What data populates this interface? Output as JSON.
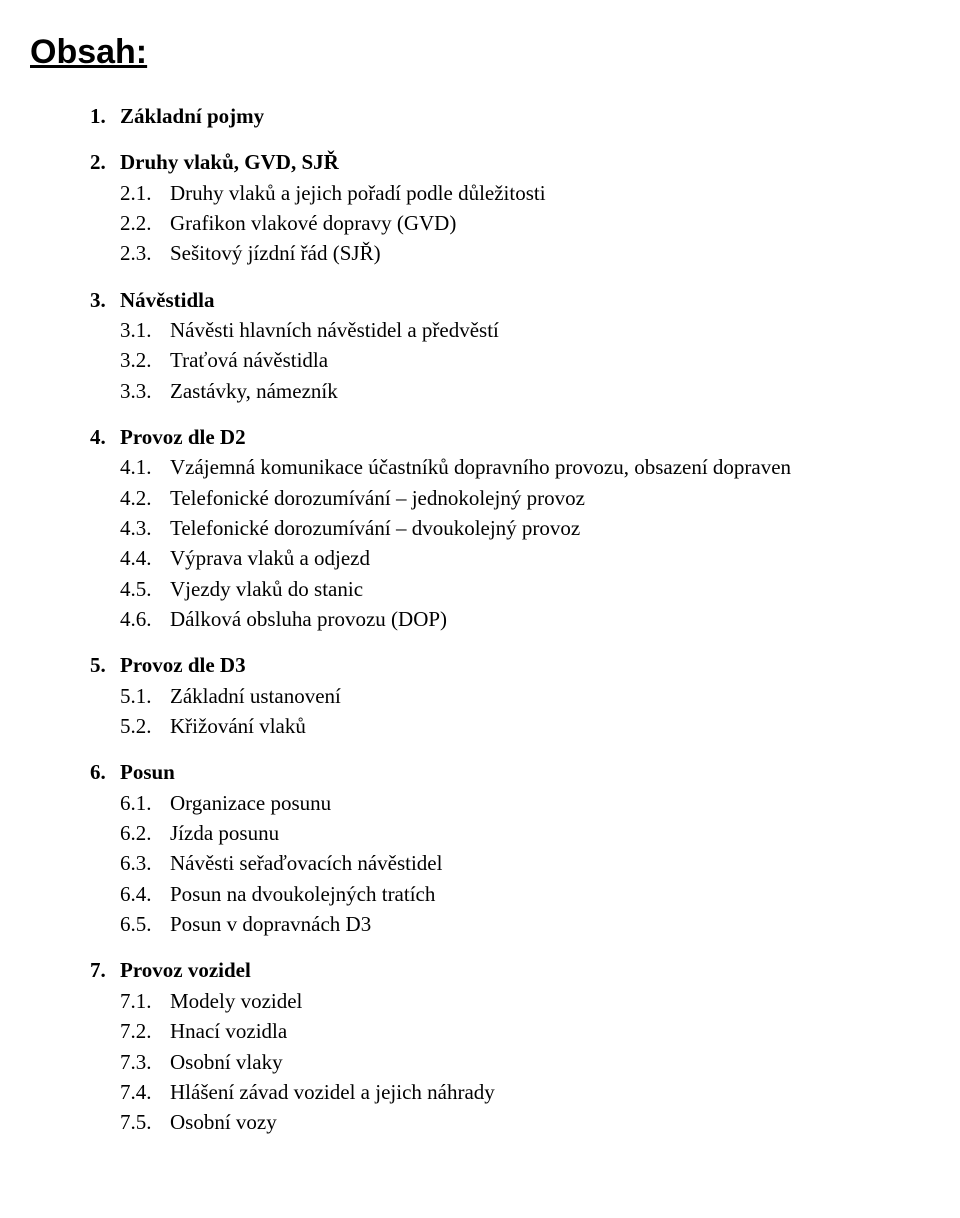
{
  "title": "Obsah:",
  "sections": [
    {
      "num": "1.",
      "title": "Základní pojmy",
      "items": []
    },
    {
      "num": "2.",
      "title": "Druhy vlaků, GVD, SJŘ",
      "items": [
        {
          "num": "2.1.",
          "text": "Druhy vlaků a jejich pořadí podle důležitosti"
        },
        {
          "num": "2.2.",
          "text": "Grafikon vlakové dopravy (GVD)"
        },
        {
          "num": "2.3.",
          "text": "Sešitový jízdní řád (SJŘ)"
        }
      ]
    },
    {
      "num": "3.",
      "title": "Návěstidla",
      "items": [
        {
          "num": "3.1.",
          "text": "Návěsti hlavních návěstidel a předvěstí"
        },
        {
          "num": "3.2.",
          "text": "Traťová návěstidla"
        },
        {
          "num": "3.3.",
          "text": "Zastávky, námezník"
        }
      ]
    },
    {
      "num": "4.",
      "title": "Provoz dle D2",
      "items": [
        {
          "num": "4.1.",
          "text": "Vzájemná komunikace účastníků dopravního provozu, obsazení dopraven"
        },
        {
          "num": "4.2.",
          "text": "Telefonické dorozumívání – jednokolejný provoz"
        },
        {
          "num": "4.3.",
          "text": "Telefonické dorozumívání – dvoukolejný provoz"
        },
        {
          "num": "4.4.",
          "text": "Výprava vlaků a odjezd"
        },
        {
          "num": "4.5.",
          "text": "Vjezdy vlaků do stanic"
        },
        {
          "num": "4.6.",
          "text": "Dálková obsluha provozu (DOP)"
        }
      ]
    },
    {
      "num": "5.",
      "title": "Provoz dle D3",
      "items": [
        {
          "num": "5.1.",
          "text": "Základní ustanovení"
        },
        {
          "num": "5.2.",
          "text": "Křižování vlaků"
        }
      ]
    },
    {
      "num": "6.",
      "title": "Posun",
      "items": [
        {
          "num": "6.1.",
          "text": "Organizace posunu"
        },
        {
          "num": "6.2.",
          "text": "Jízda posunu"
        },
        {
          "num": "6.3.",
          "text": "Návěsti seřaďovacích návěstidel"
        },
        {
          "num": "6.4.",
          "text": "Posun na dvoukolejných tratích"
        },
        {
          "num": "6.5.",
          "text": "Posun v dopravnách D3"
        }
      ]
    },
    {
      "num": "7.",
      "title": "Provoz vozidel",
      "items": [
        {
          "num": "7.1.",
          "text": "Modely vozidel"
        },
        {
          "num": "7.2.",
          "text": "Hnací vozidla"
        },
        {
          "num": "7.3.",
          "text": "Osobní vlaky"
        },
        {
          "num": "7.4.",
          "text": "Hlášení závad vozidel a jejich náhrady"
        },
        {
          "num": "7.5.",
          "text": "Osobní vozy"
        }
      ]
    }
  ]
}
